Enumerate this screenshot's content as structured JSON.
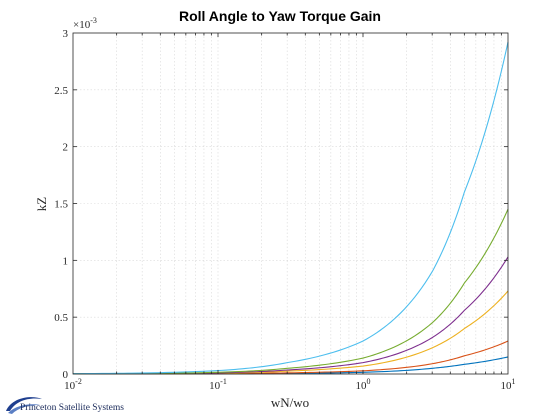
{
  "chart_data": {
    "type": "line",
    "title": "Roll Angle to Yaw Torque Gain",
    "xlabel": "wN/wo",
    "ylabel": "kZ",
    "xscale": "log",
    "xlim": [
      0.01,
      10
    ],
    "ylim": [
      0,
      0.003
    ],
    "y_multiplier_label": "×10",
    "y_multiplier_exponent": "-3",
    "x_ticks": [
      {
        "value": 0.01,
        "base": "10",
        "exp": "-2"
      },
      {
        "value": 0.1,
        "base": "10",
        "exp": "-1"
      },
      {
        "value": 1,
        "base": "10",
        "exp": "0"
      },
      {
        "value": 10,
        "base": "10",
        "exp": "1"
      }
    ],
    "y_ticks": [
      {
        "value": 0,
        "label": "0"
      },
      {
        "value": 0.0005,
        "label": "0.5"
      },
      {
        "value": 0.001,
        "label": "1"
      },
      {
        "value": 0.0015,
        "label": "1.5"
      },
      {
        "value": 0.002,
        "label": "2"
      },
      {
        "value": 0.0025,
        "label": "2.5"
      },
      {
        "value": 0.003,
        "label": "3"
      }
    ],
    "grid": true,
    "legend": "none",
    "series": [
      {
        "color": "#0072BD",
        "points": [
          [
            0.01,
            2e-07
          ],
          [
            0.1,
            2e-06
          ],
          [
            0.3,
            5e-06
          ],
          [
            1,
            1.5e-05
          ],
          [
            3,
            5e-05
          ],
          [
            5,
            8.5e-05
          ],
          [
            10,
            0.00015
          ]
        ]
      },
      {
        "color": "#D95319",
        "points": [
          [
            0.01,
            3e-07
          ],
          [
            0.1,
            3e-06
          ],
          [
            0.3,
            1e-05
          ],
          [
            1,
            2.8e-05
          ],
          [
            3,
            9e-05
          ],
          [
            5,
            0.00016
          ],
          [
            10,
            0.00029
          ]
        ]
      },
      {
        "color": "#EDB120",
        "points": [
          [
            0.01,
            8e-07
          ],
          [
            0.1,
            7e-06
          ],
          [
            0.3,
            2.5e-05
          ],
          [
            1,
            7e-05
          ],
          [
            3,
            0.00023
          ],
          [
            5,
            0.0004
          ],
          [
            10,
            0.00073
          ]
        ]
      },
      {
        "color": "#7E2F8E",
        "points": [
          [
            0.01,
            1e-06
          ],
          [
            0.1,
            1e-05
          ],
          [
            0.3,
            3.5e-05
          ],
          [
            1,
            0.0001
          ],
          [
            3,
            0.00032
          ],
          [
            5,
            0.00056
          ],
          [
            10,
            0.00103
          ]
        ]
      },
      {
        "color": "#77AC30",
        "points": [
          [
            0.01,
            1.5e-06
          ],
          [
            0.1,
            1.5e-05
          ],
          [
            0.3,
            5e-05
          ],
          [
            1,
            0.00014
          ],
          [
            3,
            0.00045
          ],
          [
            5,
            0.0008
          ],
          [
            10,
            0.00145
          ]
        ]
      },
      {
        "color": "#4DBEEE",
        "points": [
          [
            0.01,
            3e-06
          ],
          [
            0.1,
            3e-05
          ],
          [
            0.3,
            0.0001
          ],
          [
            1,
            0.00029
          ],
          [
            3,
            0.0009
          ],
          [
            5,
            0.0016
          ],
          [
            10,
            0.00292
          ]
        ]
      }
    ]
  },
  "logo": {
    "text": "Princeton Satellite Systems",
    "color": "#1a2a5a"
  }
}
